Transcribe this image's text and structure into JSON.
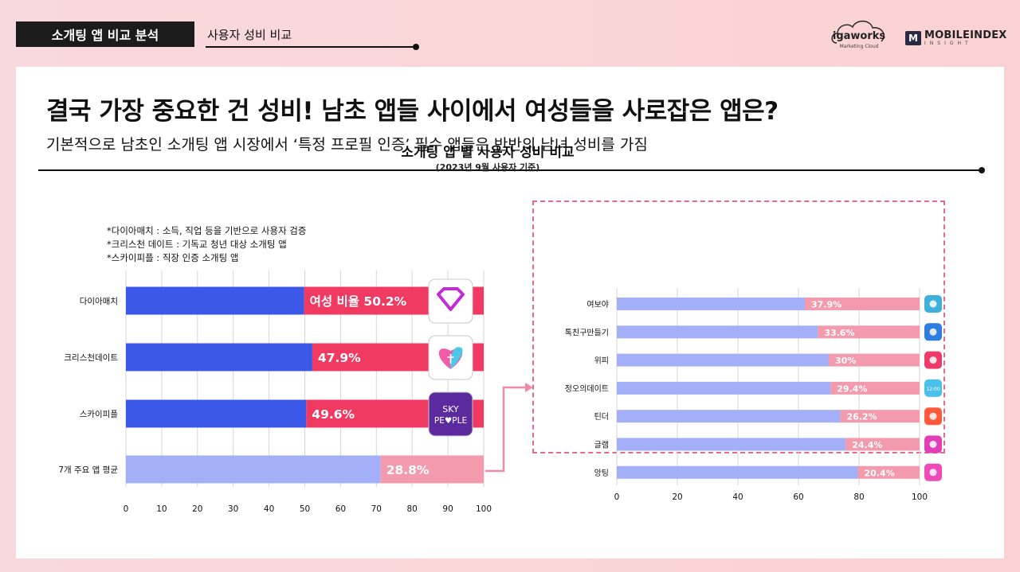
{
  "header": {
    "section_tag": "소개팅 앱 비교 분석",
    "sub_title": "사용자 성비 비교",
    "logo_igaworks": "igaworks",
    "logo_igaworks_sub": "Marketing Cloud",
    "logo_mobileindex": "MOBILEINDEX",
    "logo_mobileindex_sub": "INSIGHT"
  },
  "main": {
    "headline": "결국 가장 중요한 건 성비! 남초 앱들 사이에서 여성들을 사로잡은 앱은?",
    "subheadline": "기본적으로 남초인 소개팅 앱 시장에서 ‘특정 프로필 인증’ 필수 앱들은 반반의 남녀 성비를 가짐"
  },
  "chart_title": "소개팅 앱 별 사용자 성비 비교",
  "chart_subtitle": "(2023년 9월 사용자 기준)",
  "notes": [
    "*다이아매치 : 소득, 직업 등을 기반으로 사용자 검증",
    "*크리스천 데이트 : 기독교 청년 대상 소개팅 앱",
    "*스카이피플 : 직장 인증 소개팅 앱"
  ],
  "colors": {
    "male_main": "#3a57e8",
    "female_main": "#f03a62",
    "male_avg": "#a3aff7",
    "female_avg": "#f39aad",
    "arrow": "#f08aa6",
    "dash": "#e06b8f"
  },
  "chart_data": [
    {
      "type": "bar",
      "orientation": "horizontal",
      "stacked": true,
      "categories": [
        "다이아매치",
        "크리스천데이트",
        "스카이피플",
        "7개 주요 앱 평균"
      ],
      "series": [
        {
          "values": [
            49.8,
            52.1,
            50.4,
            71.2
          ]
        },
        {
          "values": [
            50.2,
            47.9,
            49.6,
            28.8
          ]
        }
      ],
      "data_labels": [
        "여성 비율 50.2%",
        "47.9%",
        "49.6%",
        "28.8%"
      ],
      "app_icons": [
        "diamond-icon",
        "heart-cross-icon",
        "skypeople-icon",
        null
      ],
      "app_icon_texts": [
        null,
        null,
        "SKY PE♥PLE",
        null
      ],
      "xlim": [
        0,
        100
      ],
      "xticks": [
        0,
        10,
        20,
        30,
        40,
        50,
        60,
        70,
        80,
        90,
        100
      ],
      "grid": true
    },
    {
      "type": "bar",
      "orientation": "horizontal",
      "stacked": true,
      "categories": [
        "여보야",
        "톡친구만들기",
        "위피",
        "정오의데이트",
        "틴더",
        "글램",
        "앙팅"
      ],
      "series": [
        {
          "values": [
            62.1,
            66.4,
            70,
            70.6,
            73.8,
            75.6,
            79.6
          ]
        },
        {
          "values": [
            37.9,
            33.6,
            30,
            29.4,
            26.2,
            24.4,
            20.4
          ]
        }
      ],
      "data_labels": [
        "37.9%",
        "33.6%",
        "30%",
        "29.4%",
        "26.2%",
        "24.4%",
        "20.4%"
      ],
      "app_icons": [
        "chat-icon",
        "friends-icon",
        "heart-link-icon",
        "clock-icon",
        "flame-icon",
        "sparkle-icon",
        "bubble-icon"
      ],
      "app_icon_texts": [
        null,
        null,
        null,
        "12:00",
        null,
        null,
        null
      ],
      "xlim": [
        0,
        100
      ],
      "xticks": [
        0,
        20,
        40,
        60,
        80,
        100
      ],
      "grid": true
    }
  ]
}
